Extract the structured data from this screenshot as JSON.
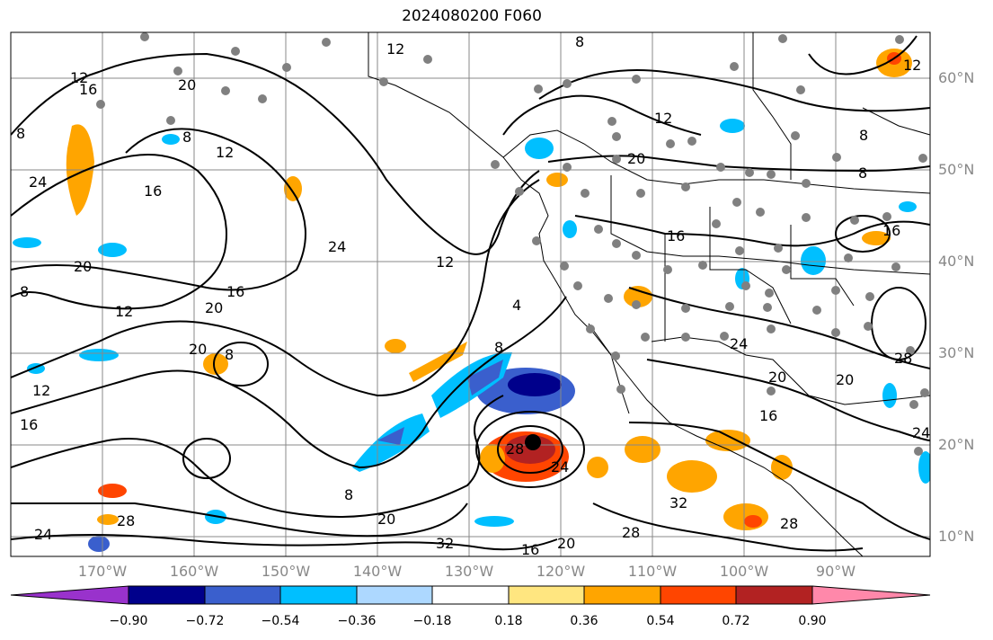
{
  "title": "2024080200 F060",
  "lat_labels": [
    "60°N",
    "50°N",
    "40°N",
    "30°N",
    "20°N",
    "10°N"
  ],
  "lon_labels": [
    "170°W",
    "160°W",
    "150°W",
    "140°W",
    "130°W",
    "120°W",
    "110°W",
    "100°W",
    "90°W"
  ],
  "colorbar": {
    "ticks": [
      "−0.90",
      "−0.72",
      "−0.54",
      "−0.36",
      "−0.18",
      "0.18",
      "0.36",
      "0.54",
      "0.72",
      "0.90"
    ],
    "colors": [
      "#9932cc",
      "#00008b",
      "#3a5fcd",
      "#00bfff",
      "#add8ff",
      "#ffffff",
      "#ffe680",
      "#ffa500",
      "#ff4500",
      "#b22222",
      "#ff88aa"
    ]
  },
  "contour_labels": [
    "12",
    "16",
    "20",
    "8",
    "24",
    "12",
    "8",
    "20",
    "12",
    "16",
    "20",
    "24",
    "12",
    "16",
    "20",
    "12",
    "8",
    "16",
    "8",
    "20",
    "8",
    "12",
    "4",
    "8",
    "28",
    "24",
    "20",
    "16",
    "8",
    "12",
    "28",
    "32",
    "20",
    "28",
    "16",
    "24",
    "32",
    "20",
    "24",
    "16",
    "8",
    "16",
    "8",
    "12",
    "20",
    "28",
    "28",
    "24"
  ],
  "colors": {
    "contour": "#000000",
    "station": "#808080",
    "grid": "#888888",
    "coast": "#000000"
  }
}
